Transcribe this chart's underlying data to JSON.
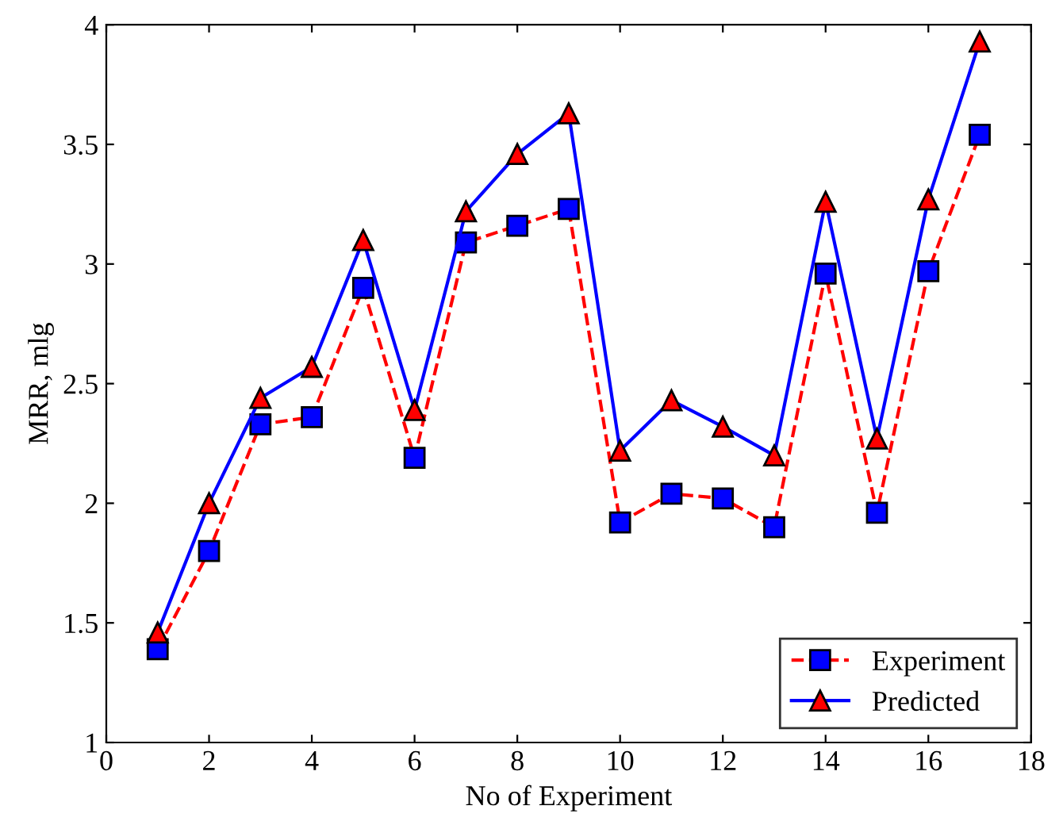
{
  "chart_data": {
    "type": "line",
    "xlabel": "No of Experiment",
    "ylabel": "MRR, mlg",
    "x": [
      1,
      2,
      3,
      4,
      5,
      6,
      7,
      8,
      9,
      10,
      11,
      12,
      13,
      14,
      15,
      16,
      17
    ],
    "series": [
      {
        "name": "Experiment",
        "color": "#ff0000",
        "marker": "square",
        "line_style": "dashed",
        "values": [
          1.39,
          1.8,
          2.33,
          2.36,
          2.9,
          2.19,
          3.09,
          3.16,
          3.23,
          1.92,
          2.04,
          2.02,
          1.9,
          2.96,
          1.96,
          2.97,
          3.54
        ]
      },
      {
        "name": "Predicted",
        "color": "#0000ff",
        "marker": "triangle",
        "line_style": "solid",
        "values": [
          1.46,
          2.0,
          2.44,
          2.57,
          3.1,
          2.39,
          3.22,
          3.46,
          3.63,
          2.22,
          2.43,
          2.32,
          2.2,
          3.26,
          2.27,
          3.27,
          3.93
        ]
      }
    ],
    "xlim": [
      0,
      18
    ],
    "ylim": [
      1,
      4
    ],
    "xticks": [
      0,
      2,
      4,
      6,
      8,
      10,
      12,
      14,
      16,
      18
    ],
    "yticks": [
      1,
      1.5,
      2,
      2.5,
      3,
      3.5,
      4
    ],
    "grid": false,
    "legend": "bottom right"
  }
}
